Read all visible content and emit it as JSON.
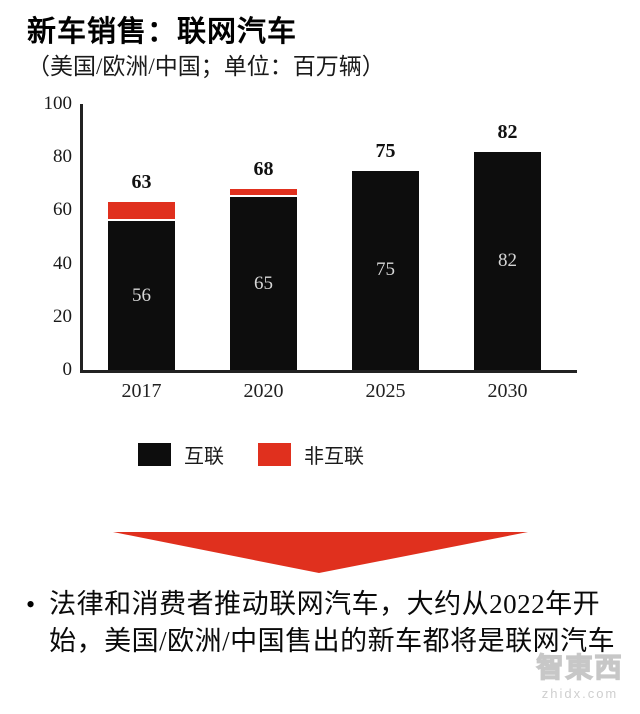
{
  "header": {
    "title": "新车销售：联网汽车",
    "subtitle": "（美国/欧洲/中国；单位：百万辆）"
  },
  "chart_data": {
    "type": "bar",
    "stacked": true,
    "title": "新车销售：联网汽车",
    "subtitle": "（美国/欧洲/中国；单位：百万辆）",
    "categories": [
      "2017",
      "2020",
      "2025",
      "2030"
    ],
    "series": [
      {
        "name": "互联",
        "color": "#0d0d0d",
        "values": [
          56,
          65,
          75,
          82
        ]
      },
      {
        "name": "非互联",
        "color": "#e0301e",
        "values": [
          7,
          3,
          0,
          0
        ]
      }
    ],
    "totals": [
      63,
      68,
      75,
      82
    ],
    "inside_labels": [
      "56",
      "65",
      "75",
      "82"
    ],
    "inside_label_color": "#d6d6d6",
    "ylim": [
      0,
      100
    ],
    "yticks": [
      0,
      20,
      40,
      60,
      80,
      100
    ],
    "grid": false,
    "legend_position": "bottom"
  },
  "arrow": {
    "color": "#e0301e",
    "direction": "down"
  },
  "bullet": {
    "marker": "•",
    "text": "法律和消费者推动联网汽车，大约从2022年开始，美国/欧洲/中国售出的新车都将是联网汽车"
  },
  "watermark": {
    "logo_text": "智東西",
    "url_text": "zhidx.com"
  }
}
